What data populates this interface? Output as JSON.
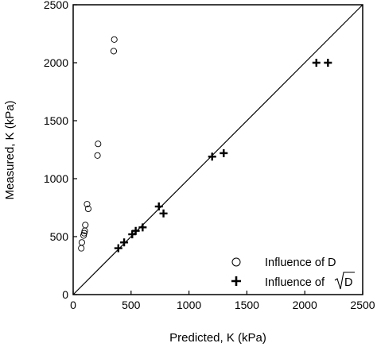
{
  "chart_data": {
    "type": "scatter",
    "xlabel": "Predicted, K (kPa)",
    "ylabel": "Measured, K (kPa)",
    "xlim": [
      0,
      2500
    ],
    "ylim": [
      0,
      2500
    ],
    "xticks": [
      0,
      500,
      1000,
      1500,
      2000,
      2500
    ],
    "yticks": [
      0,
      500,
      1000,
      1500,
      2000,
      2500
    ],
    "xtick_labels": [
      "0",
      "500",
      "1000",
      "1500",
      "2000",
      "2500"
    ],
    "ytick_labels": [
      "0",
      "500",
      "1000",
      "1500",
      "2000",
      "2500"
    ],
    "grid": false,
    "legend_position": "bottom-right",
    "reference_line": {
      "type": "1:1",
      "from": [
        0,
        0
      ],
      "to": [
        2500,
        2500
      ]
    },
    "series": [
      {
        "name": "Influence of D",
        "marker": "open-circle",
        "points": [
          [
            70,
            400
          ],
          [
            75,
            450
          ],
          [
            90,
            510
          ],
          [
            95,
            530
          ],
          [
            100,
            550
          ],
          [
            105,
            600
          ],
          [
            120,
            780
          ],
          [
            130,
            740
          ],
          [
            210,
            1200
          ],
          [
            215,
            1300
          ],
          [
            350,
            2100
          ],
          [
            355,
            2200
          ]
        ]
      },
      {
        "name": "Influence of √D",
        "marker": "plus",
        "points": [
          [
            390,
            400
          ],
          [
            440,
            450
          ],
          [
            510,
            520
          ],
          [
            540,
            550
          ],
          [
            600,
            580
          ],
          [
            740,
            760
          ],
          [
            780,
            700
          ],
          [
            1200,
            1190
          ],
          [
            1300,
            1220
          ],
          [
            2100,
            2000
          ],
          [
            2200,
            2000
          ]
        ]
      }
    ]
  },
  "legend": {
    "label_d": "Influence of D",
    "label_sqrt_prefix": "Influence of ",
    "label_sqrt_arg": "D"
  }
}
